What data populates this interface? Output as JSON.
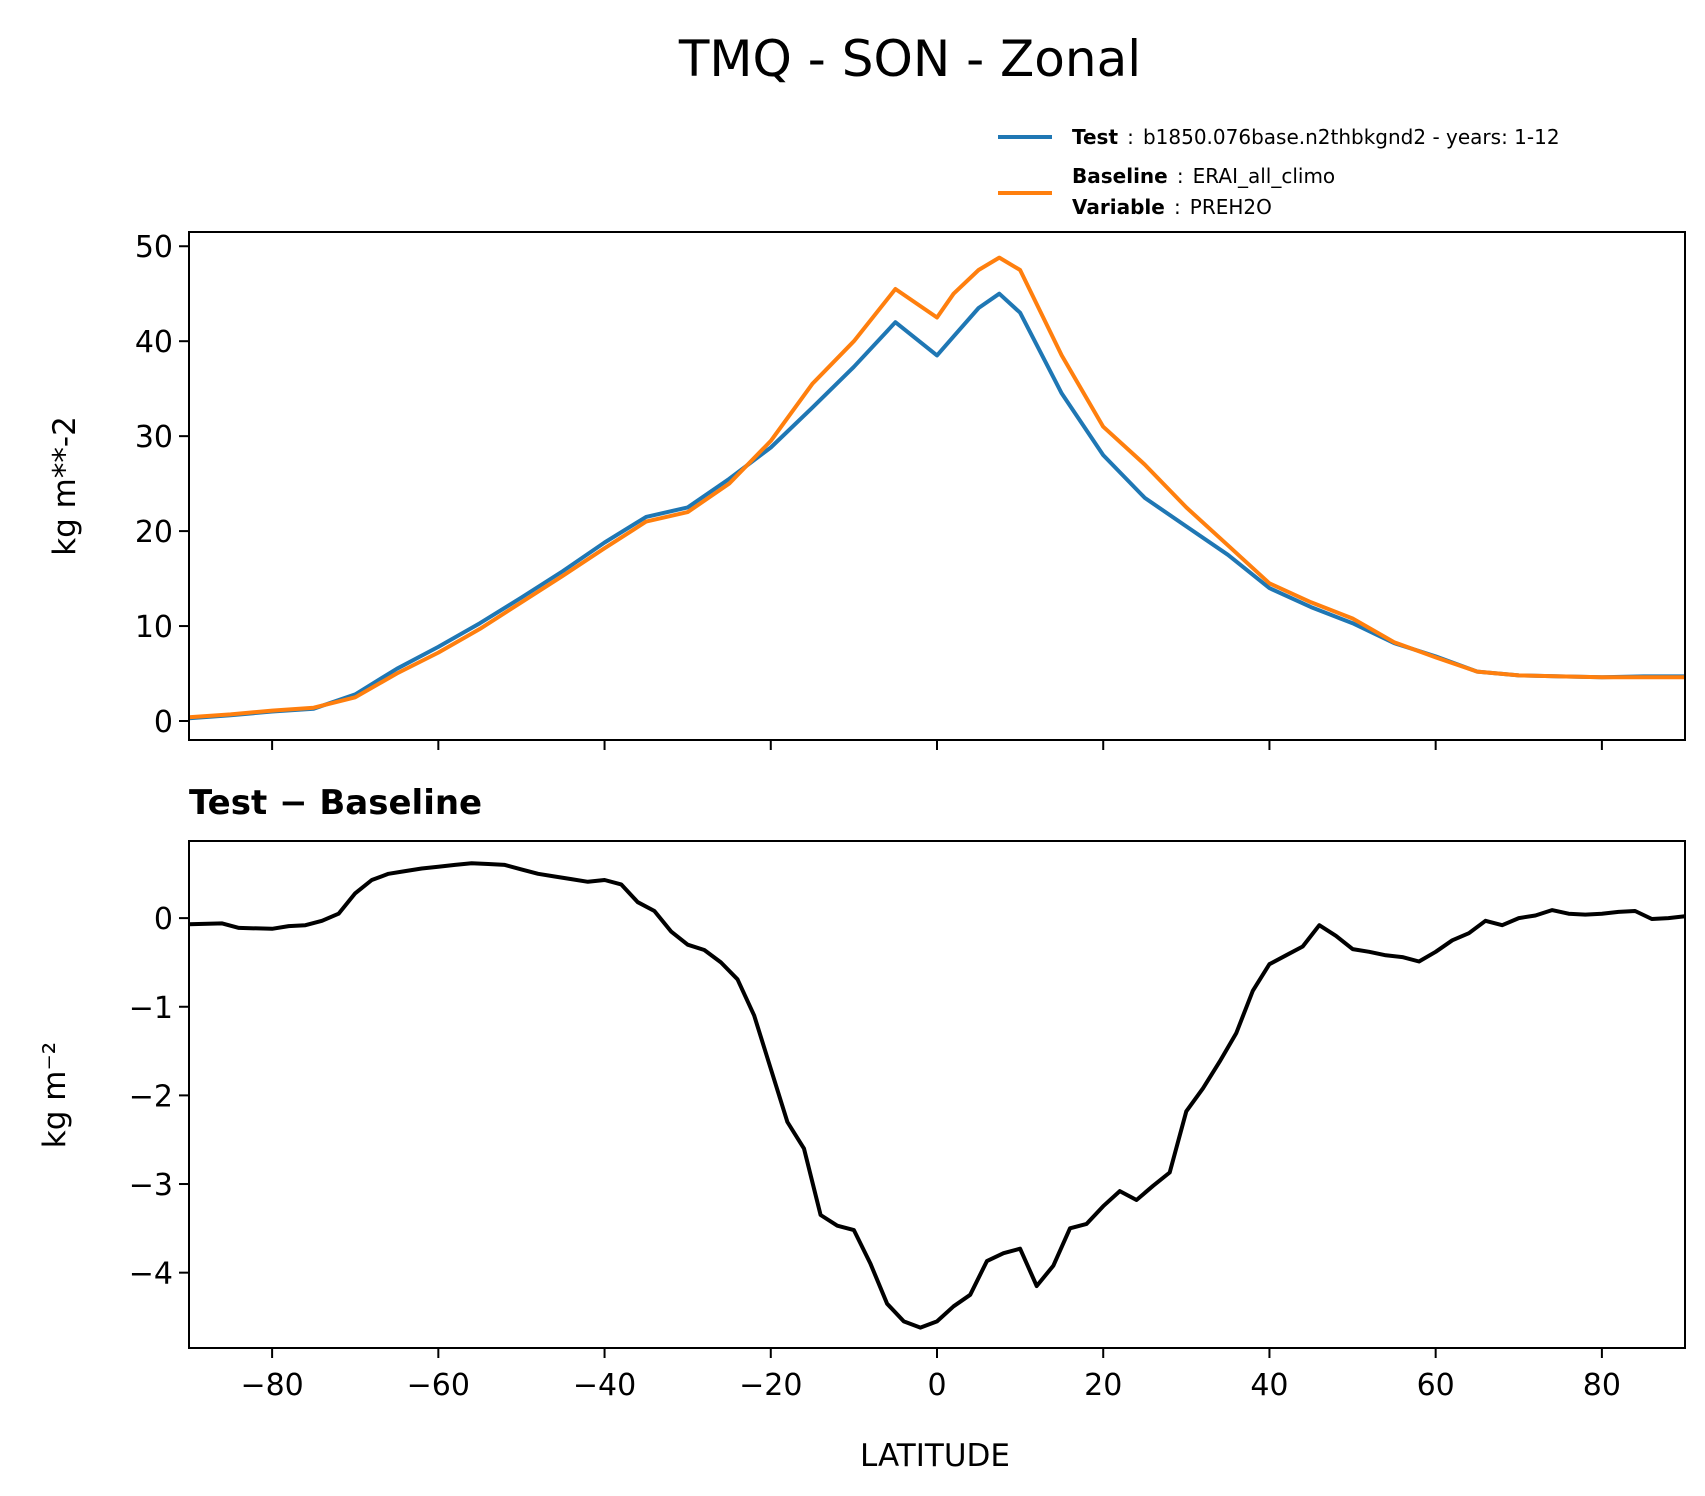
{
  "chart_data": [
    {
      "type": "line",
      "title": "TMQ - SON - Zonal",
      "xlabel": "",
      "ylabel": "kg m**-2",
      "xlim": [
        -90,
        90
      ],
      "ylim": [
        -2,
        51.5
      ],
      "xticks": [
        -80,
        -60,
        -40,
        -20,
        0,
        20,
        40,
        60,
        80
      ],
      "yticks": [
        0,
        10,
        20,
        30,
        40,
        50
      ],
      "grid": false,
      "legend": {
        "placement": "above-right",
        "entries": [
          {
            "key": "Test",
            "sep": ":",
            "text": "b1850.076base.n2thbkgnd2 - years: 1-12",
            "color": "#1f77b4"
          },
          {
            "key": "Baseline",
            "sep": ":",
            "text": "ERAI_all_climo",
            "color": "#ff7f0e"
          },
          {
            "key": "Variable",
            "sep": ":",
            "text": "PREH2O",
            "color": ""
          }
        ]
      },
      "x": [
        -90,
        -85,
        -80,
        -75,
        -70,
        -65,
        -60,
        -55,
        -50,
        -45,
        -40,
        -35,
        -30,
        -25,
        -20,
        -15,
        -10,
        -5,
        0,
        2,
        5,
        7.5,
        10,
        15,
        20,
        25,
        30,
        35,
        40,
        45,
        50,
        55,
        60,
        65,
        70,
        75,
        80,
        85,
        90
      ],
      "series": [
        {
          "name": "Test",
          "color": "#1f77b4",
          "values": [
            0.3,
            0.6,
            1.0,
            1.3,
            2.8,
            5.5,
            7.8,
            10.3,
            13.0,
            15.8,
            18.8,
            21.5,
            22.5,
            25.5,
            28.8,
            33.0,
            37.3,
            42.0,
            38.5,
            40.5,
            43.5,
            45.0,
            43.0,
            34.5,
            28.0,
            23.5,
            20.5,
            17.5,
            14.0,
            12.0,
            10.3,
            8.2,
            6.8,
            5.2,
            4.8,
            4.7,
            4.6,
            4.7,
            4.7
          ],
          "values_note": ""
        },
        {
          "name": "Baseline",
          "color": "#ff7f0e",
          "values": [
            0.4,
            0.7,
            1.1,
            1.4,
            2.5,
            5.0,
            7.2,
            9.7,
            12.5,
            15.3,
            18.2,
            21.0,
            22.0,
            25.0,
            29.5,
            35.5,
            40.0,
            45.5,
            42.5,
            45.0,
            47.5,
            48.8,
            47.5,
            38.5,
            31.0,
            27.0,
            22.5,
            18.5,
            14.5,
            12.5,
            10.8,
            8.3,
            6.7,
            5.2,
            4.8,
            4.7,
            4.6,
            4.6,
            4.6
          ]
        }
      ]
    },
    {
      "type": "line",
      "title": "Test − Baseline",
      "xlabel": "LATITUDE",
      "ylabel": "kg m⁻²",
      "xlim": [
        -90,
        90
      ],
      "ylim": [
        -4.85,
        0.87
      ],
      "xticks": [
        -80,
        -60,
        -40,
        -20,
        0,
        20,
        40,
        60,
        80
      ],
      "yticks": [
        0,
        -1,
        -2,
        -3,
        -4
      ],
      "grid": false,
      "series": [
        {
          "name": "",
          "color": "#000000",
          "x": [
            -90,
            -86,
            -84,
            -80,
            -78,
            -76,
            -74,
            -72,
            -70,
            -68,
            -66,
            -64,
            -62,
            -60,
            -58,
            -56,
            -54,
            -52,
            -50,
            -48,
            -46,
            -44,
            -42,
            -40,
            -38,
            -36,
            -34,
            -32,
            -30,
            -28,
            -26,
            -24,
            -22,
            -20,
            -18,
            -16,
            -14,
            -12,
            -10,
            -8,
            -6,
            -4,
            -2,
            0,
            2,
            4,
            6,
            8,
            10,
            12,
            14,
            16,
            18,
            20,
            22,
            24,
            26,
            28,
            30,
            32,
            34,
            36,
            38,
            40,
            42,
            44,
            46,
            48,
            50,
            52,
            54,
            56,
            58,
            60,
            62,
            64,
            66,
            68,
            70,
            72,
            74,
            76,
            78,
            80,
            82,
            84,
            86,
            88,
            90
          ],
          "values": [
            -0.07,
            -0.06,
            -0.11,
            -0.12,
            -0.09,
            -0.08,
            -0.03,
            0.05,
            0.28,
            0.43,
            0.5,
            0.53,
            0.56,
            0.58,
            0.6,
            0.62,
            0.61,
            0.6,
            0.55,
            0.5,
            0.47,
            0.44,
            0.41,
            0.43,
            0.38,
            0.18,
            0.08,
            -0.15,
            -0.3,
            -0.36,
            -0.5,
            -0.69,
            -1.1,
            -1.7,
            -2.3,
            -2.6,
            -3.35,
            -3.47,
            -3.52,
            -3.9,
            -4.35,
            -4.55,
            -4.62,
            -4.55,
            -4.38,
            -4.25,
            -3.87,
            -3.78,
            -3.73,
            -4.15,
            -3.92,
            -3.5,
            -3.45,
            -3.25,
            -3.08,
            -3.18,
            -3.02,
            -2.87,
            -2.18,
            -1.92,
            -1.62,
            -1.3,
            -0.82,
            -0.52,
            -0.42,
            -0.32,
            -0.08,
            -0.2,
            -0.35,
            -0.38,
            -0.42,
            -0.44,
            -0.49,
            -0.38,
            -0.25,
            -0.17,
            -0.03,
            -0.08,
            0.0,
            0.03,
            0.09,
            0.05,
            0.04,
            0.05,
            0.07,
            0.08,
            -0.01,
            0.0,
            0.02
          ]
        }
      ]
    }
  ]
}
